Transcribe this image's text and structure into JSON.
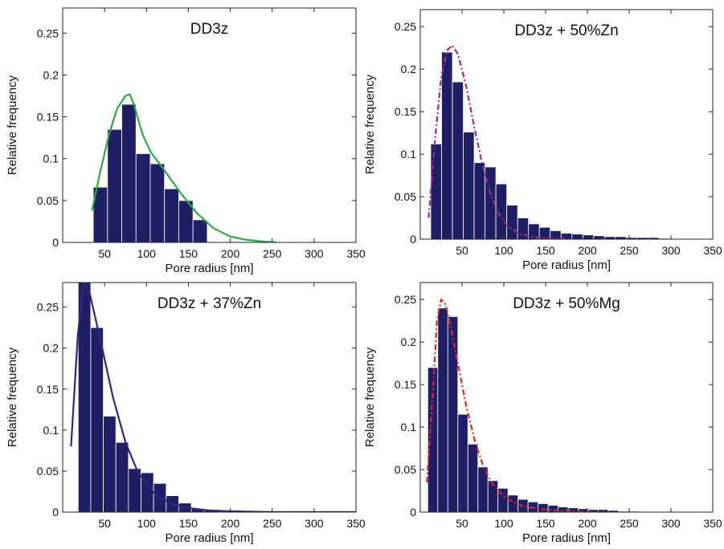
{
  "chart_data": [
    {
      "type": "bar",
      "title": "DD3z",
      "xlabel": "Pore radius [nm]",
      "ylabel": "Relative frequency",
      "xlim": [
        0,
        350
      ],
      "ylim": [
        0,
        0.28
      ],
      "xticks": [
        50,
        100,
        150,
        200,
        250,
        300,
        350
      ],
      "yticks": [
        0,
        0.05,
        0.1,
        0.15,
        0.2,
        0.25
      ],
      "ytick_labels": [
        "0",
        "0.05",
        "0.1",
        "0.15",
        "0.2",
        "0.25"
      ],
      "grid": false,
      "bin_width": 17,
      "bars": {
        "x": [
          45,
          62,
          79,
          96,
          113,
          130,
          147,
          164
        ],
        "values": [
          0.066,
          0.135,
          0.165,
          0.106,
          0.094,
          0.064,
          0.05,
          0.027
        ]
      },
      "fit_curve": {
        "color": "#2ea84a",
        "style": "solid",
        "x": [
          35,
          45,
          55,
          65,
          75,
          80,
          85,
          95,
          105,
          120,
          140,
          160,
          180,
          200,
          220,
          240,
          255
        ],
        "y": [
          0.038,
          0.085,
          0.128,
          0.16,
          0.175,
          0.177,
          0.165,
          0.13,
          0.108,
          0.088,
          0.06,
          0.035,
          0.017,
          0.007,
          0.003,
          0.001,
          0.0
        ]
      }
    },
    {
      "type": "bar",
      "title": "DD3z + 50%Zn",
      "xlabel": "Pore radius [nm]",
      "ylabel": "Relative frequency",
      "xlim": [
        0,
        350
      ],
      "ylim": [
        0,
        0.27
      ],
      "xticks": [
        50,
        100,
        150,
        200,
        250,
        300,
        350
      ],
      "yticks": [
        0,
        0.05,
        0.1,
        0.15,
        0.2,
        0.25
      ],
      "ytick_labels": [
        "0",
        "0.05",
        "0.1",
        "0.15",
        "0.2",
        "0.25"
      ],
      "grid": false,
      "bin_width": 13,
      "bars": {
        "x": [
          19,
          32,
          45,
          58,
          71,
          84,
          97,
          110,
          123,
          136,
          149,
          162,
          175,
          188,
          201,
          214,
          227,
          240,
          253,
          266,
          279,
          292
        ],
        "values": [
          0.112,
          0.22,
          0.185,
          0.126,
          0.09,
          0.085,
          0.065,
          0.04,
          0.025,
          0.018,
          0.014,
          0.01,
          0.007,
          0.006,
          0.005,
          0.004,
          0.003,
          0.003,
          0.002,
          0.002,
          0.002,
          0.001
        ]
      },
      "fit_curve": {
        "color": "#a02a8c",
        "style": "dash-dot",
        "x": [
          10,
          18,
          25,
          32,
          38,
          45,
          55,
          65,
          75,
          85,
          95,
          105,
          120,
          140,
          160,
          180
        ],
        "y": [
          0.025,
          0.12,
          0.19,
          0.222,
          0.228,
          0.218,
          0.18,
          0.13,
          0.085,
          0.05,
          0.028,
          0.015,
          0.006,
          0.002,
          0.001,
          0.0
        ]
      }
    },
    {
      "type": "bar",
      "title": "DD3z + 37%Zn",
      "xlabel": "Pore radius [nm]",
      "ylabel": "Relative frequency",
      "xlim": [
        0,
        350
      ],
      "ylim": [
        0,
        0.28
      ],
      "xticks": [
        50,
        100,
        150,
        200,
        250,
        300,
        350
      ],
      "yticks": [
        0,
        0.05,
        0.1,
        0.15,
        0.2,
        0.25
      ],
      "ytick_labels": [
        "0",
        "0.05",
        "0.1",
        "0.15",
        "0.2",
        "0.25"
      ],
      "grid": false,
      "bin_width": 15,
      "bars": {
        "x": [
          26,
          41,
          56,
          71,
          86,
          101,
          116,
          131,
          146,
          161,
          176,
          191,
          206,
          221,
          236,
          251,
          266
        ],
        "values": [
          0.28,
          0.225,
          0.117,
          0.085,
          0.053,
          0.048,
          0.035,
          0.02,
          0.011,
          0.004,
          0.002,
          0.002,
          0.002,
          0.001,
          0.001,
          0.001,
          0.001
        ]
      },
      "fit_curve": {
        "color": "#2c2b7a",
        "style": "solid",
        "x": [
          10,
          18,
          25,
          32,
          45,
          60,
          75,
          90,
          110,
          130,
          150,
          175,
          200,
          250,
          300,
          350
        ],
        "y": [
          0.08,
          0.215,
          0.282,
          0.268,
          0.21,
          0.14,
          0.085,
          0.048,
          0.022,
          0.01,
          0.005,
          0.002,
          0.001,
          0.0,
          0.0,
          0.0
        ]
      }
    },
    {
      "type": "bar",
      "title": "DD3z + 50%Mg",
      "xlabel": "Pore radius [nm]",
      "ylabel": "Relative frequency",
      "xlim": [
        0,
        350
      ],
      "ylim": [
        0,
        0.27
      ],
      "xticks": [
        50,
        100,
        150,
        200,
        250,
        300,
        350
      ],
      "yticks": [
        0,
        0.05,
        0.1,
        0.15,
        0.2,
        0.25
      ],
      "ytick_labels": [
        "0",
        "0.05",
        "0.1",
        "0.15",
        "0.2",
        "0.25"
      ],
      "grid": false,
      "bin_width": 12,
      "bars": {
        "x": [
          15,
          27,
          39,
          51,
          63,
          75,
          87,
          99,
          111,
          123,
          135,
          147,
          159,
          171,
          183,
          195,
          207,
          219,
          231,
          243,
          255
        ],
        "values": [
          0.17,
          0.24,
          0.23,
          0.115,
          0.08,
          0.053,
          0.037,
          0.028,
          0.02,
          0.015,
          0.012,
          0.01,
          0.008,
          0.006,
          0.005,
          0.004,
          0.003,
          0.003,
          0.002,
          0.001,
          0.001
        ]
      },
      "fit_curve": {
        "color": "#d8282a",
        "style": "dash-dot",
        "x": [
          8,
          15,
          20,
          25,
          30,
          35,
          45,
          55,
          65,
          75,
          85,
          100,
          120,
          140,
          160,
          180,
          200,
          220
        ],
        "y": [
          0.035,
          0.14,
          0.225,
          0.25,
          0.245,
          0.225,
          0.175,
          0.125,
          0.085,
          0.055,
          0.035,
          0.018,
          0.008,
          0.004,
          0.002,
          0.001,
          0.0,
          0.0
        ]
      }
    }
  ],
  "colors": {
    "bar_fill": "#1f1f66",
    "bar_stroke": "#ffffff",
    "axis": "#222222"
  }
}
